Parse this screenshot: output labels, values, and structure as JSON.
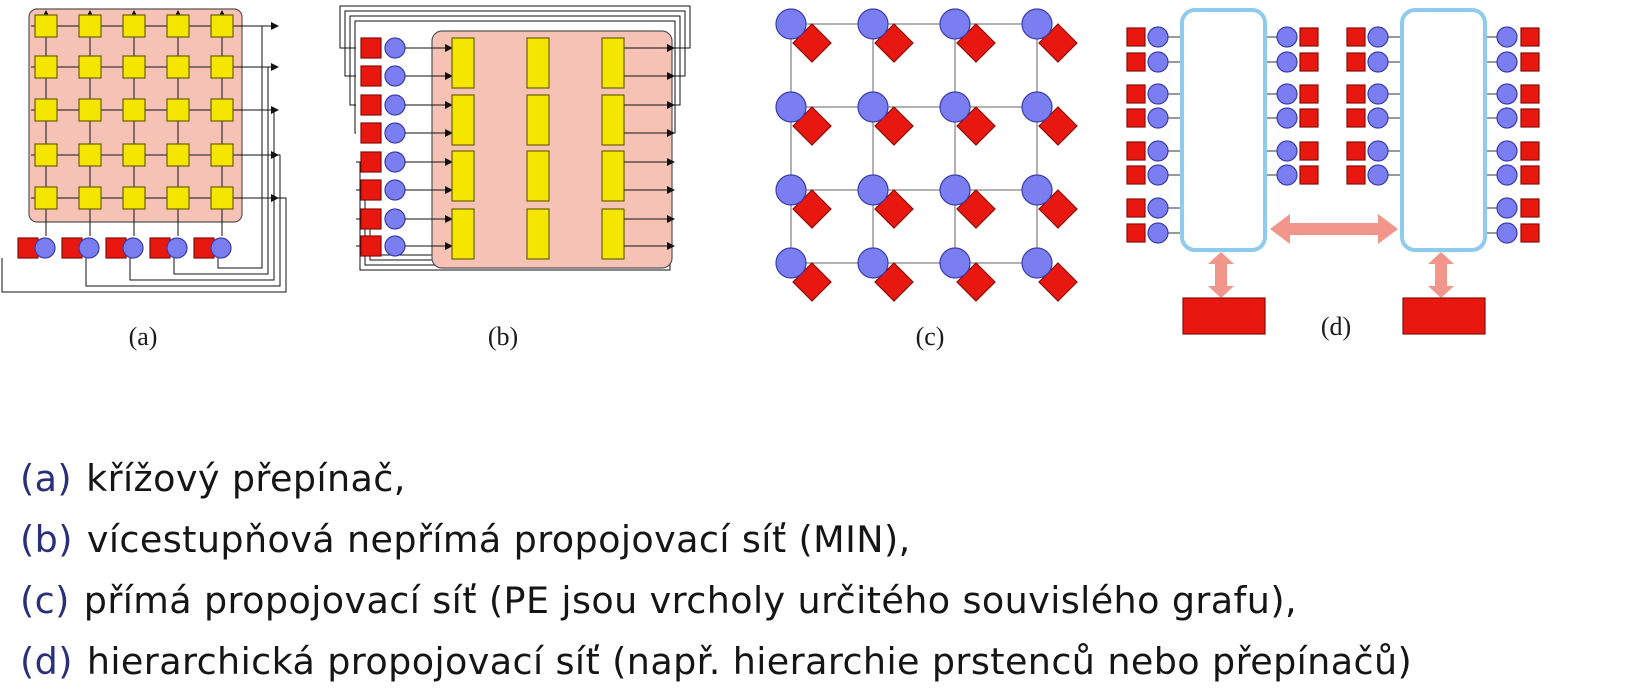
{
  "diagrams": [
    {
      "id": "a",
      "caption": "(a)"
    },
    {
      "id": "b",
      "caption": "(b)"
    },
    {
      "id": "c",
      "caption": "(c)"
    },
    {
      "id": "d",
      "caption": "(d)"
    }
  ],
  "legend": [
    {
      "tag": "(a)",
      "text": "křížový přepínač,"
    },
    {
      "tag": "(b)",
      "text": "vícestupňová nepřímá propojovací síť (MIN),"
    },
    {
      "tag": "(c)",
      "text": "přímá propojovací síť (PE jsou vrcholy určitého souvislého grafu),"
    },
    {
      "tag": "(d)",
      "text": "hierarchická propojovací síť (např. hierarchie prstenců nebo přepínačů)"
    }
  ],
  "colors": {
    "switch_yellow": "#f5e600",
    "fabric_pink": "#f6c2b6",
    "memory_red": "#e8170f",
    "processor_blue": "#7a7ef0",
    "ring_blue": "#8ecbec",
    "link_salmon": "#f2958a",
    "tag_navy": "#2a2f7a"
  },
  "icons": {
    "processor": "blue-circle",
    "memory": "red-square",
    "switch": "yellow-rectangle"
  }
}
